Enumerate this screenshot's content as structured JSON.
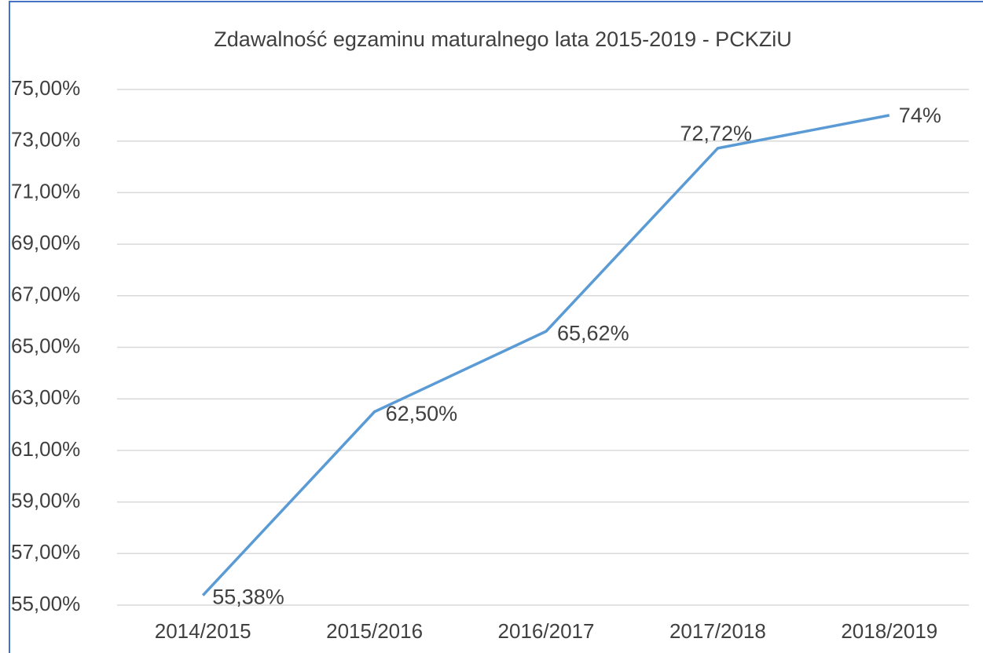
{
  "chart_data": {
    "type": "line",
    "title": "Zdawalność egzaminu maturalnego lata 2015-2019 - PCKZiU",
    "categories": [
      "2014/2015",
      "2015/2016",
      "2016/2017",
      "2017/2018",
      "2018/2019"
    ],
    "values": [
      55.38,
      62.5,
      65.62,
      72.72,
      74
    ],
    "value_labels": [
      "55,38%",
      "62,50%",
      "65,62%",
      "72,72%",
      "74%"
    ],
    "color": "#5b9bd5",
    "ylim": [
      55,
      75
    ],
    "yticks": [
      {
        "value": 55,
        "label": "55,00%"
      },
      {
        "value": 57,
        "label": "57,00%"
      },
      {
        "value": 59,
        "label": "59,00%"
      },
      {
        "value": 61,
        "label": "61,00%"
      },
      {
        "value": 63,
        "label": "63,00%"
      },
      {
        "value": 65,
        "label": "65,00%"
      },
      {
        "value": 67,
        "label": "67,00%"
      },
      {
        "value": 69,
        "label": "69,00%"
      },
      {
        "value": 71,
        "label": "71,00%"
      },
      {
        "value": 73,
        "label": "73,00%"
      },
      {
        "value": 75,
        "label": "75,00%"
      }
    ],
    "grid": true
  }
}
